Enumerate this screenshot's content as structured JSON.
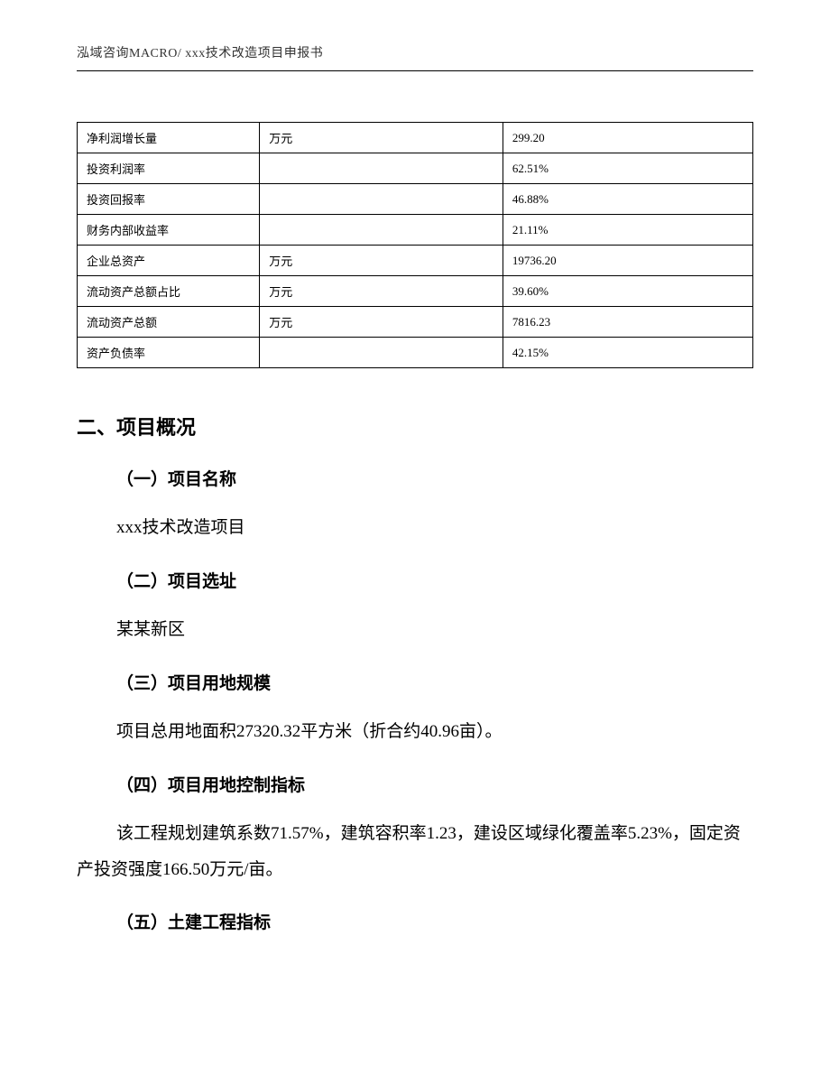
{
  "header": {
    "text": "泓域咨询MACRO/   xxx技术改造项目申报书"
  },
  "table": {
    "rows": [
      {
        "label": "净利润增长量",
        "unit": "万元",
        "value": "299.20"
      },
      {
        "label": "投资利润率",
        "unit": "",
        "value": "62.51%"
      },
      {
        "label": "投资回报率",
        "unit": "",
        "value": "46.88%"
      },
      {
        "label": "财务内部收益率",
        "unit": "",
        "value": "21.11%"
      },
      {
        "label": "企业总资产",
        "unit": "万元",
        "value": "19736.20"
      },
      {
        "label": "流动资产总额占比",
        "unit": "万元",
        "value": "39.60%"
      },
      {
        "label": "流动资产总额",
        "unit": "万元",
        "value": "7816.23"
      },
      {
        "label": "资产负债率",
        "unit": "",
        "value": "42.15%"
      }
    ]
  },
  "section": {
    "title": "二、项目概况",
    "sub1": {
      "title": "（一）项目名称",
      "text": "xxx技术改造项目"
    },
    "sub2": {
      "title": "（二）项目选址",
      "text": "某某新区"
    },
    "sub3": {
      "title": "（三）项目用地规模",
      "text": "项目总用地面积27320.32平方米（折合约40.96亩）。"
    },
    "sub4": {
      "title": "（四）项目用地控制指标",
      "text": "该工程规划建筑系数71.57%，建筑容积率1.23，建设区域绿化覆盖率5.23%，固定资产投资强度166.50万元/亩。"
    },
    "sub5": {
      "title": "（五）土建工程指标"
    }
  }
}
